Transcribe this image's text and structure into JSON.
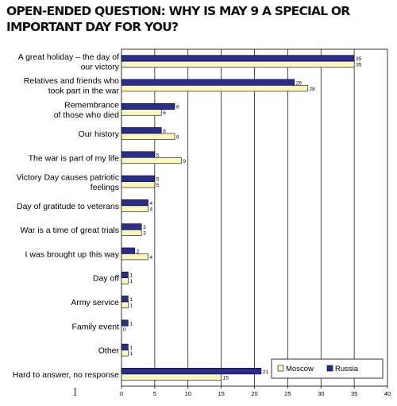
{
  "title": "OPEN-ENDED QUESTION: WHY IS MAY 9 A SPECIAL OR IMPORTANT DAY FOR YOU?",
  "chart_data": {
    "type": "bar",
    "orientation": "horizontal",
    "title": "OPEN-ENDED QUESTION: WHY IS MAY 9 A SPECIAL OR IMPORTANT DAY FOR YOU?",
    "categories": [
      "A great holiday – the day of our victory",
      "Relatives and friends who took part in the war",
      "Remembrance of those who died",
      "Our history",
      "The war is part of my life",
      "Victory Day causes patriotic feelings",
      "Day of gratitude to veterans",
      "War is a time of great trials",
      "I was brought up this way",
      "Day off",
      "Army service",
      "Family event",
      "Other",
      "Hard to answer, no response"
    ],
    "category_lines": [
      [
        "A great holiday – the day of",
        "our victory"
      ],
      [
        "Relatives and friends who",
        "took part in the war"
      ],
      [
        "Remembrance",
        "of those who died"
      ],
      [
        "Our history"
      ],
      [
        "The war is part of my life"
      ],
      [
        "Victory Day causes patriotic",
        "feelings"
      ],
      [
        "Day of gratitude to veterans"
      ],
      [
        "War is a time of great trials"
      ],
      [
        "I was brought up this way"
      ],
      [
        "Day off"
      ],
      [
        "Army service"
      ],
      [
        "Family event"
      ],
      [
        "Other"
      ],
      [
        "Hard to answer, no response"
      ]
    ],
    "series": [
      {
        "name": "Russia",
        "color": "#2b2d8c",
        "values": [
          35,
          26,
          8,
          6,
          5,
          5,
          4,
          3,
          2,
          1,
          1,
          1,
          1,
          21
        ]
      },
      {
        "name": "Moscow",
        "color": "#fbf7c0",
        "values": [
          35,
          28,
          6,
          8,
          9,
          5,
          4,
          3,
          4,
          1,
          1,
          0,
          1,
          15
        ]
      }
    ],
    "x_ticks": [
      0,
      5,
      10,
      15,
      20,
      25,
      30,
      35,
      40
    ],
    "xlim": [
      0,
      40
    ],
    "grid": "vertical",
    "legend_position": "bottom-right",
    "legend_order": [
      "Moscow",
      "Russia"
    ]
  },
  "cursor_glyph": "I"
}
